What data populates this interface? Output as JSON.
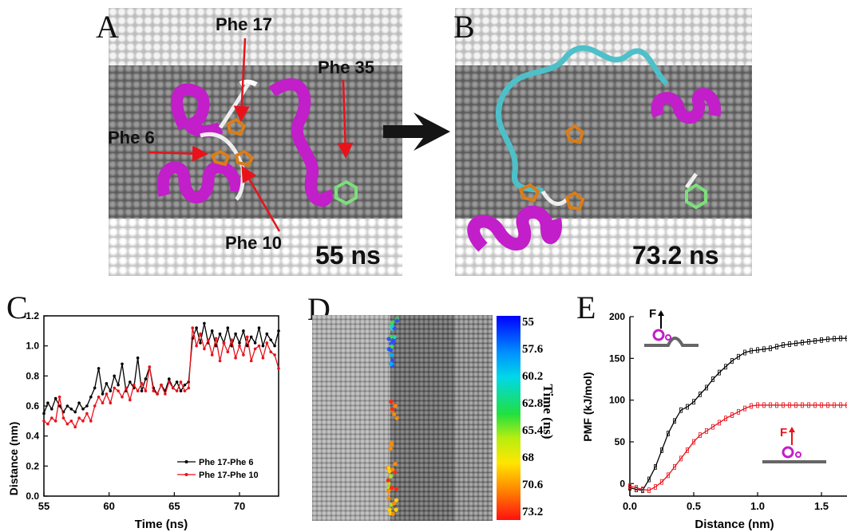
{
  "panels": {
    "a": {
      "letter": "A",
      "time": "55 ns",
      "labels": [
        "Phe 17",
        "Phe 35",
        "Phe 6",
        "Phe 10"
      ]
    },
    "b": {
      "letter": "B",
      "time": "73.2 ns"
    },
    "c": {
      "letter": "C"
    },
    "d": {
      "letter": "D",
      "colorbar_title": "Time (ns)",
      "colorbar_ticks": [
        "55",
        "57.6",
        "60.2",
        "62.8",
        "65.4",
        "68",
        "70.6",
        "73.2"
      ]
    },
    "e": {
      "letter": "E",
      "inset_label": "F"
    }
  },
  "colors": {
    "black_series": "#000000",
    "red_series": "#e8121b",
    "helix": "#c21ec9",
    "coil": "#4dc0c9",
    "phe": "#d97d1a",
    "phe35": "#7be07b",
    "arrow": "#e8121b"
  },
  "chart_data": [
    {
      "type": "line",
      "xlabel": "Time (ns)",
      "ylabel": "Distance (nm)",
      "xlim": [
        55,
        73
      ],
      "ylim": [
        0.0,
        1.2
      ],
      "xticks": [
        55,
        60,
        65,
        70
      ],
      "yticks": [
        0.0,
        0.2,
        0.4,
        0.6,
        0.8,
        1.0,
        1.2
      ],
      "xtick_labels": [
        "55",
        "60",
        "65",
        "70"
      ],
      "ytick_labels": [
        "0.0",
        "0.2",
        "0.4",
        "0.6",
        "0.8",
        "1.0",
        "1.2"
      ],
      "legend_position": "bottom-right",
      "x": [
        55.0,
        55.3,
        55.6,
        55.9,
        56.2,
        56.5,
        56.8,
        57.1,
        57.4,
        57.7,
        58.0,
        58.3,
        58.6,
        58.9,
        59.2,
        59.5,
        59.8,
        60.1,
        60.4,
        60.7,
        61.0,
        61.3,
        61.6,
        61.9,
        62.2,
        62.5,
        62.8,
        63.1,
        63.4,
        63.7,
        64.0,
        64.3,
        64.6,
        64.9,
        65.2,
        65.5,
        65.8,
        66.1,
        66.4,
        66.7,
        67.0,
        67.3,
        67.6,
        67.9,
        68.2,
        68.5,
        68.8,
        69.1,
        69.4,
        69.7,
        70.0,
        70.3,
        70.6,
        70.9,
        71.2,
        71.5,
        71.8,
        72.1,
        72.4,
        72.7,
        73.0
      ],
      "series": [
        {
          "name": "Phe 17-Phe 6",
          "color": "#000000",
          "values": [
            0.55,
            0.62,
            0.58,
            0.65,
            0.6,
            0.56,
            0.6,
            0.58,
            0.56,
            0.62,
            0.58,
            0.6,
            0.66,
            0.72,
            0.85,
            0.68,
            0.75,
            0.7,
            0.8,
            0.74,
            0.88,
            0.7,
            0.76,
            0.72,
            0.92,
            0.7,
            0.78,
            0.86,
            0.72,
            0.68,
            0.74,
            0.7,
            0.78,
            0.72,
            0.76,
            0.7,
            0.74,
            0.76,
            1.05,
            1.12,
            1.02,
            1.15,
            1.02,
            1.1,
            1.0,
            1.08,
            1.02,
            1.12,
            1.0,
            1.08,
            1.02,
            1.1,
            1.0,
            1.06,
            1.02,
            1.12,
            1.0,
            1.08,
            1.04,
            1.0,
            1.1
          ]
        },
        {
          "name": "Phe 17-Phe 10",
          "color": "#e8121b",
          "values": [
            0.5,
            0.48,
            0.52,
            0.5,
            0.66,
            0.52,
            0.48,
            0.5,
            0.46,
            0.52,
            0.5,
            0.55,
            0.5,
            0.6,
            0.66,
            0.62,
            0.68,
            0.62,
            0.72,
            0.7,
            0.66,
            0.72,
            0.64,
            0.74,
            0.7,
            0.75,
            0.7,
            0.86,
            0.7,
            0.68,
            0.74,
            0.68,
            0.76,
            0.72,
            0.7,
            0.76,
            0.7,
            0.72,
            1.12,
            1.0,
            1.08,
            0.98,
            1.04,
            0.94,
            1.05,
            0.9,
            1.02,
            0.96,
            1.04,
            0.92,
            1.0,
            0.94,
            1.06,
            0.9,
            0.98,
            1.0,
            0.92,
            1.02,
            0.96,
            0.94,
            0.85
          ]
        }
      ]
    },
    {
      "type": "line",
      "xlabel": "Distance (nm)",
      "ylabel": "PMF (kJ/mol)",
      "xlim": [
        0.0,
        1.7
      ],
      "ylim": [
        -15,
        200
      ],
      "xticks": [
        0.0,
        0.5,
        1.0,
        1.5
      ],
      "yticks": [
        0,
        50,
        100,
        150,
        200
      ],
      "xtick_labels": [
        "0.0",
        "0.5",
        "1.0",
        "1.5"
      ],
      "ytick_labels": [
        "0",
        "50",
        "100",
        "150",
        "200"
      ],
      "x": [
        0.0,
        0.05,
        0.1,
        0.15,
        0.2,
        0.25,
        0.3,
        0.35,
        0.4,
        0.45,
        0.5,
        0.55,
        0.6,
        0.65,
        0.7,
        0.75,
        0.8,
        0.85,
        0.9,
        0.95,
        1.0,
        1.05,
        1.1,
        1.15,
        1.2,
        1.25,
        1.3,
        1.35,
        1.4,
        1.45,
        1.5,
        1.55,
        1.6,
        1.65,
        1.7
      ],
      "series": [
        {
          "color": "#000000",
          "values": [
            -5,
            -7,
            -8,
            5,
            20,
            40,
            60,
            75,
            88,
            92,
            98,
            107,
            115,
            125,
            133,
            140,
            147,
            152,
            157,
            159,
            160,
            161,
            162,
            164,
            166,
            167,
            168,
            169,
            170,
            171,
            172,
            173,
            173.5,
            174,
            174
          ]
        },
        {
          "color": "#e8121b",
          "values": [
            -3,
            -5,
            -7,
            -8,
            -4,
            2,
            10,
            20,
            30,
            40,
            50,
            58,
            63,
            68,
            73,
            78,
            82,
            86,
            90,
            93,
            94,
            94,
            94,
            94,
            94,
            94,
            94,
            94,
            94,
            94,
            94,
            94,
            94,
            94,
            94
          ]
        }
      ]
    }
  ]
}
